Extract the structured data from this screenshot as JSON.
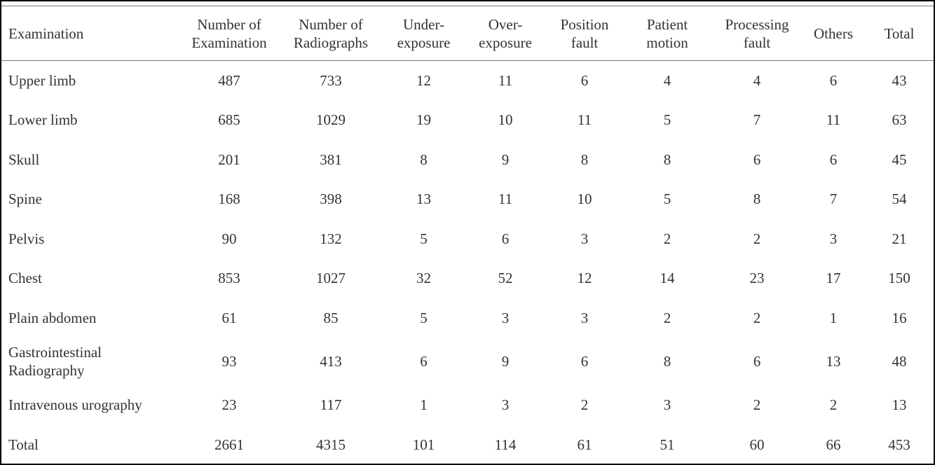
{
  "table": {
    "header": [
      [
        "Examination"
      ],
      [
        "Number of",
        "Examination"
      ],
      [
        "Number of",
        "Radiographs"
      ],
      [
        "Under-",
        "exposure"
      ],
      [
        "Over-",
        "exposure"
      ],
      [
        "Position",
        "fault"
      ],
      [
        "Patient",
        "motion"
      ],
      [
        "Processing",
        "fault"
      ],
      [
        "Others"
      ],
      [
        "Total"
      ]
    ],
    "rows": [
      [
        "Upper limb",
        487,
        733,
        12,
        11,
        6,
        4,
        4,
        6,
        43
      ],
      [
        "Lower limb",
        685,
        1029,
        19,
        10,
        11,
        5,
        7,
        11,
        63
      ],
      [
        "Skull",
        201,
        381,
        8,
        9,
        8,
        8,
        6,
        6,
        45
      ],
      [
        "Spine",
        168,
        398,
        13,
        11,
        10,
        5,
        8,
        7,
        54
      ],
      [
        "Pelvis",
        90,
        132,
        5,
        6,
        3,
        2,
        2,
        3,
        21
      ],
      [
        "Chest",
        853,
        1027,
        32,
        52,
        12,
        14,
        23,
        17,
        150
      ],
      [
        "Plain abdomen",
        61,
        85,
        5,
        3,
        3,
        2,
        2,
        1,
        16
      ],
      [
        "Gastrointestinal Radiography",
        93,
        413,
        6,
        9,
        6,
        8,
        6,
        13,
        48
      ],
      [
        "Intravenous urography",
        23,
        117,
        1,
        3,
        2,
        3,
        2,
        2,
        13
      ],
      [
        "Total",
        2661,
        4315,
        101,
        114,
        61,
        51,
        60,
        66,
        453
      ]
    ]
  }
}
